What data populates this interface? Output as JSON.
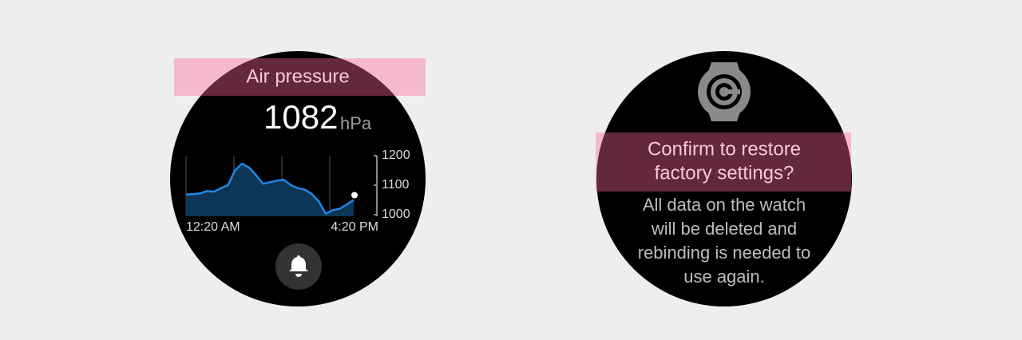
{
  "left": {
    "title": "Air pressure",
    "value": 1082,
    "unit": "hPa",
    "chart": {
      "type": "line",
      "color": "#1e88e5",
      "values": [
        1068,
        1070,
        1072,
        1080,
        1078,
        1090,
        1100,
        1150,
        1173,
        1160,
        1135,
        1105,
        1110,
        1115,
        1118,
        1100,
        1090,
        1085,
        1070,
        1045,
        1003,
        1015,
        1020,
        1035,
        1050
      ],
      "ylim": [
        1000,
        1200
      ],
      "yticks": [
        1200,
        1100,
        1000
      ],
      "x_labels": [
        "12:20 AM",
        "4:20 PM"
      ]
    }
  },
  "right": {
    "title_lines": [
      "Confirm to restore",
      "factory settings?"
    ],
    "body_lines": [
      "All data on the watch",
      "will be deleted and",
      "rebinding is needed to",
      "use again."
    ]
  }
}
